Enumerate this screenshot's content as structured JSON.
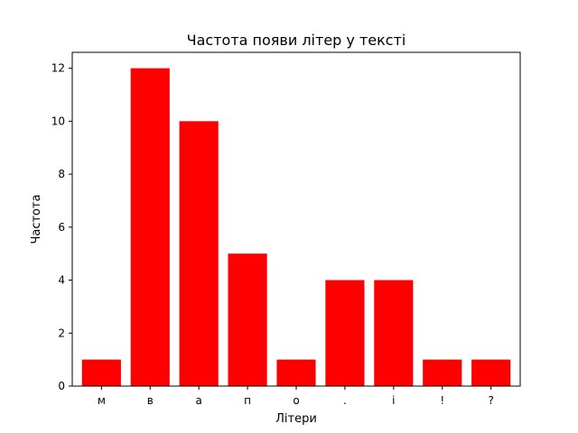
{
  "chart_data": {
    "type": "bar",
    "title": "Частота появи літер у тексті",
    "xlabel": "Літери",
    "ylabel": "Частота",
    "categories": [
      "м",
      "в",
      "а",
      "п",
      "о",
      ".",
      "і",
      "!",
      "?"
    ],
    "values": [
      1,
      12,
      10,
      5,
      1,
      4,
      4,
      1,
      1
    ],
    "ylim": [
      0,
      12.6
    ],
    "yticks": [
      0,
      2,
      4,
      6,
      8,
      10,
      12
    ],
    "bar_color": "#ff0000",
    "grid": false,
    "legend": "none"
  }
}
